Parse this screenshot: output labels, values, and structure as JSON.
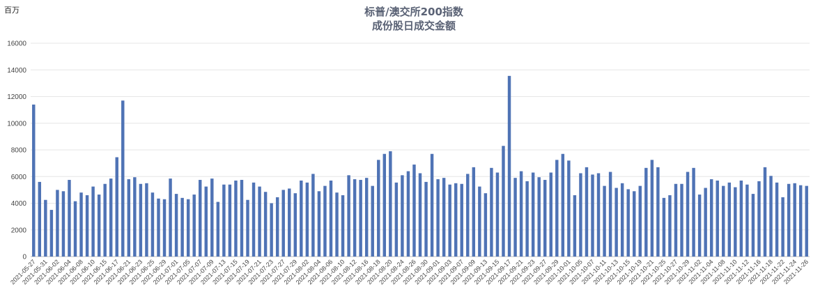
{
  "chart_data": {
    "type": "bar",
    "title_line1": "标普/澳交所200指数",
    "title_line2": "成份股日成交金额",
    "unit_label": "百万",
    "ylim": [
      0,
      16000
    ],
    "yticks": [
      0,
      2000,
      4000,
      6000,
      8000,
      10000,
      12000,
      14000,
      16000
    ],
    "grid": true,
    "legend": "none",
    "bar_color": "#4f73b5",
    "categories": [
      "2021-05-27",
      "2021-05-28",
      "2021-05-31",
      "2021-06-01",
      "2021-06-02",
      "2021-06-03",
      "2021-06-04",
      "2021-06-07",
      "2021-06-08",
      "2021-06-09",
      "2021-06-10",
      "2021-06-11",
      "2021-06-15",
      "2021-06-16",
      "2021-06-17",
      "2021-06-18",
      "2021-06-21",
      "2021-06-22",
      "2021-06-23",
      "2021-06-24",
      "2021-06-25",
      "2021-06-28",
      "2021-06-29",
      "2021-06-30",
      "2021-07-01",
      "2021-07-02",
      "2021-07-05",
      "2021-07-06",
      "2021-07-07",
      "2021-07-08",
      "2021-07-09",
      "2021-07-12",
      "2021-07-13",
      "2021-07-14",
      "2021-07-15",
      "2021-07-16",
      "2021-07-19",
      "2021-07-20",
      "2021-07-21",
      "2021-07-22",
      "2021-07-23",
      "2021-07-26",
      "2021-07-27",
      "2021-07-28",
      "2021-07-29",
      "2021-07-30",
      "2021-08-02",
      "2021-08-03",
      "2021-08-04",
      "2021-08-05",
      "2021-08-06",
      "2021-08-09",
      "2021-08-10",
      "2021-08-11",
      "2021-08-12",
      "2021-08-13",
      "2021-08-16",
      "2021-08-17",
      "2021-08-18",
      "2021-08-19",
      "2021-08-20",
      "2021-08-23",
      "2021-08-24",
      "2021-08-25",
      "2021-08-26",
      "2021-08-27",
      "2021-08-30",
      "2021-08-31",
      "2021-09-01",
      "2021-09-02",
      "2021-09-03",
      "2021-09-06",
      "2021-09-07",
      "2021-09-08",
      "2021-09-09",
      "2021-09-10",
      "2021-09-13",
      "2021-09-14",
      "2021-09-15",
      "2021-09-16",
      "2021-09-17",
      "2021-09-20",
      "2021-09-21",
      "2021-09-22",
      "2021-09-23",
      "2021-09-24",
      "2021-09-27",
      "2021-09-28",
      "2021-09-29",
      "2021-09-30",
      "2021-10-01",
      "2021-10-04",
      "2021-10-05",
      "2021-10-06",
      "2021-10-07",
      "2021-10-08",
      "2021-10-11",
      "2021-10-12",
      "2021-10-13",
      "2021-10-14",
      "2021-10-15",
      "2021-10-18",
      "2021-10-19",
      "2021-10-20",
      "2021-10-21",
      "2021-10-22",
      "2021-10-25",
      "2021-10-26",
      "2021-10-27",
      "2021-10-28",
      "2021-10-29",
      "2021-11-01",
      "2021-11-02",
      "2021-11-03",
      "2021-11-04",
      "2021-11-05",
      "2021-11-08",
      "2021-11-09",
      "2021-11-10",
      "2021-11-11",
      "2021-11-12",
      "2021-11-15",
      "2021-11-16",
      "2021-11-17",
      "2021-11-18",
      "2021-11-19",
      "2021-11-22",
      "2021-11-23",
      "2021-11-24",
      "2021-11-25",
      "2021-11-26"
    ],
    "values": [
      11400,
      5600,
      4250,
      3500,
      5000,
      4900,
      5750,
      4150,
      4800,
      4600,
      5250,
      4650,
      5450,
      5850,
      7450,
      11700,
      5800,
      5950,
      5450,
      5500,
      4800,
      4350,
      4300,
      5850,
      4700,
      4400,
      4300,
      4650,
      5750,
      5250,
      5850,
      4100,
      5400,
      5400,
      5700,
      5750,
      4250,
      5550,
      5250,
      4850,
      4000,
      4450,
      5000,
      5100,
      4750,
      5700,
      5550,
      6200,
      4900,
      5300,
      5700,
      4800,
      4600,
      6100,
      5800,
      5750,
      5900,
      5300,
      7250,
      7700,
      7900,
      5550,
      6100,
      6400,
      6900,
      6250,
      5600,
      7700,
      5800,
      5900,
      5400,
      5500,
      5450,
      6200,
      6700,
      5250,
      4750,
      6650,
      6300,
      8300,
      13550,
      5900,
      6400,
      5650,
      6300,
      5950,
      5750,
      6300,
      7250,
      7700,
      7200,
      4600,
      6250,
      6700,
      6150,
      6250,
      5300,
      6350,
      5150,
      5500,
      5050,
      4900,
      5300,
      6650,
      7250,
      6700,
      4400,
      4600,
      5450,
      5450,
      6350,
      6650,
      4650,
      5150,
      5800,
      5700,
      5300,
      5550,
      5200,
      5700,
      5400,
      4700,
      5650,
      6700,
      6050,
      5550,
      4450,
      5450,
      5500,
      5350,
      5300
    ],
    "xtick_labels": [
      "2021-05-27",
      "2021-05-31",
      "2021-06-02",
      "2021-06-04",
      "2021-06-08",
      "2021-06-10",
      "2021-06-15",
      "2021-06-17",
      "2021-06-21",
      "2021-06-23",
      "2021-06-25",
      "2021-06-29",
      "2021-07-01",
      "2021-07-05",
      "2021-07-07",
      "2021-07-09",
      "2021-07-13",
      "2021-07-15",
      "2021-07-19",
      "2021-07-21",
      "2021-07-23",
      "2021-07-27",
      "2021-07-29",
      "2021-08-02",
      "2021-08-04",
      "2021-08-06",
      "2021-08-10",
      "2021-08-12",
      "2021-08-16",
      "2021-08-18",
      "2021-08-20",
      "2021-08-24",
      "2021-08-26",
      "2021-08-30",
      "2021-09-01",
      "2021-09-03",
      "2021-09-07",
      "2021-09-09",
      "2021-09-13",
      "2021-09-15",
      "2021-09-17",
      "2021-09-21",
      "2021-09-23",
      "2021-09-27",
      "2021-09-29",
      "2021-10-01",
      "2021-10-05",
      "2021-10-07",
      "2021-10-11",
      "2021-10-13",
      "2021-10-15",
      "2021-10-19",
      "2021-10-21",
      "2021-10-25",
      "2021-10-27",
      "2021-10-29",
      "2021-11-02",
      "2021-11-04",
      "2021-11-08",
      "2021-11-10",
      "2021-11-12",
      "2021-11-16",
      "2021-11-18",
      "2021-11-22",
      "2021-11-24",
      "2021-11-26"
    ]
  }
}
